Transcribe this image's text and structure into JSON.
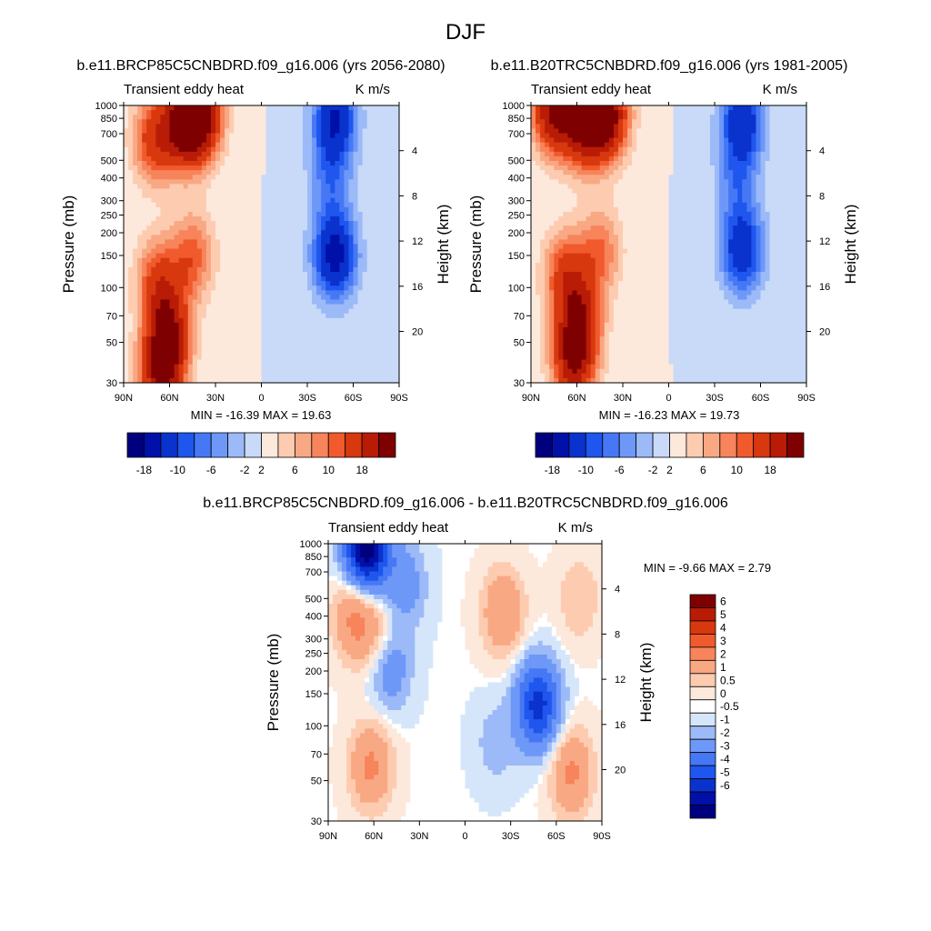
{
  "figure": {
    "title": "DJF"
  },
  "chart_data": [
    {
      "type": "heatmap",
      "title": "b.e11.BRCP85C5CNBDRD.f09_g16.006 (yrs 2056-2080)",
      "left_label": "Transient eddy heat",
      "right_label": "K m/s",
      "ylabel": "Pressure (mb)",
      "y2label": "Height (km)",
      "x_ticks": [
        "90N",
        "60N",
        "30N",
        "0",
        "30S",
        "60S",
        "90S"
      ],
      "y_ticks": [
        "30",
        "50",
        "70",
        "100",
        "150",
        "200",
        "250",
        "300",
        "400",
        "500",
        "700",
        "850",
        "1000"
      ],
      "y2_ticks": [
        "20",
        "16",
        "12",
        "8",
        "4"
      ],
      "xlim": [
        90,
        -90
      ],
      "ylim_mb": [
        1000,
        30
      ],
      "min_max": "MIN = -16.39  MAX =  19.63",
      "colorbar_ticks": [
        "-18",
        "-10",
        "-6",
        "-2",
        "2",
        "6",
        "10",
        "18"
      ],
      "features": [
        {
          "lat": 65,
          "p": 35,
          "v": 19
        },
        {
          "lat": 60,
          "p": 60,
          "v": 14
        },
        {
          "lat": 68,
          "p": 110,
          "v": 10
        },
        {
          "lat": 45,
          "p": 150,
          "v": 9
        },
        {
          "lat": 50,
          "p": 800,
          "v": 17
        },
        {
          "lat": 40,
          "p": 880,
          "v": 19
        },
        {
          "lat": 70,
          "p": 650,
          "v": 12
        },
        {
          "lat": -48,
          "p": 150,
          "v": -16
        },
        {
          "lat": -48,
          "p": 850,
          "v": -14
        },
        {
          "lat": -45,
          "p": 400,
          "v": -6
        }
      ]
    },
    {
      "type": "heatmap",
      "title": "b.e11.B20TRC5CNBDRD.f09_g16.006 (yrs 1981-2005)",
      "left_label": "Transient eddy heat",
      "right_label": "K m/s",
      "ylabel": "Pressure (mb)",
      "y2label": "Height (km)",
      "x_ticks": [
        "90N",
        "60N",
        "30N",
        "0",
        "30S",
        "60S",
        "90S"
      ],
      "y_ticks": [
        "30",
        "50",
        "70",
        "100",
        "150",
        "200",
        "250",
        "300",
        "400",
        "500",
        "700",
        "850",
        "1000"
      ],
      "y2_ticks": [
        "20",
        "16",
        "12",
        "8",
        "4"
      ],
      "xlim": [
        90,
        -90
      ],
      "ylim_mb": [
        1000,
        30
      ],
      "min_max": "MIN = -16.23  MAX =  19.73",
      "colorbar_ticks": [
        "-18",
        "-10",
        "-6",
        "-2",
        "2",
        "6",
        "10",
        "18"
      ],
      "features": [
        {
          "lat": 62,
          "p": 40,
          "v": 17
        },
        {
          "lat": 58,
          "p": 70,
          "v": 13
        },
        {
          "lat": 68,
          "p": 120,
          "v": 10
        },
        {
          "lat": 45,
          "p": 160,
          "v": 8
        },
        {
          "lat": 55,
          "p": 800,
          "v": 18
        },
        {
          "lat": 40,
          "p": 880,
          "v": 19
        },
        {
          "lat": 75,
          "p": 950,
          "v": 19
        },
        {
          "lat": -48,
          "p": 160,
          "v": -13
        },
        {
          "lat": -48,
          "p": 850,
          "v": -13
        },
        {
          "lat": -45,
          "p": 400,
          "v": -6
        }
      ]
    },
    {
      "type": "heatmap",
      "title": "b.e11.BRCP85C5CNBDRD.f09_g16.006 - b.e11.B20TRC5CNBDRD.f09_g16.006",
      "left_label": "Transient eddy heat",
      "right_label": "K m/s",
      "ylabel": "Pressure (mb)",
      "y2label": "Height (km)",
      "x_ticks": [
        "90N",
        "60N",
        "30N",
        "0",
        "30S",
        "60S",
        "90S"
      ],
      "y_ticks": [
        "30",
        "50",
        "70",
        "100",
        "150",
        "200",
        "250",
        "300",
        "400",
        "500",
        "700",
        "850",
        "1000"
      ],
      "y2_ticks": [
        "20",
        "16",
        "12",
        "8",
        "4"
      ],
      "xlim": [
        90,
        -90
      ],
      "ylim_mb": [
        1000,
        30
      ],
      "min_max": "MIN =  -9.66  MAX =   2.79",
      "colorbar_ticks": [
        "6",
        "5",
        "4",
        "3",
        "2",
        "1",
        "0.5",
        "0",
        "-0.5",
        "-1",
        "-2",
        "-3",
        "-4",
        "-5",
        "-6"
      ],
      "features": [
        {
          "lat": 62,
          "p": 60,
          "v": 2.2
        },
        {
          "lat": 55,
          "p": 300,
          "v": 1.5
        },
        {
          "lat": 72,
          "p": 400,
          "v": 2.4
        },
        {
          "lat": 50,
          "p": 220,
          "v": -2.2
        },
        {
          "lat": 65,
          "p": 960,
          "v": -7
        },
        {
          "lat": 40,
          "p": 600,
          "v": -1.6
        },
        {
          "lat": -48,
          "p": 130,
          "v": -4.5
        },
        {
          "lat": -70,
          "p": 55,
          "v": 2.2
        },
        {
          "lat": -25,
          "p": 420,
          "v": 2
        },
        {
          "lat": -75,
          "p": 500,
          "v": 1
        },
        {
          "lat": -20,
          "p": 80,
          "v": -0.8
        }
      ]
    }
  ],
  "colors": {
    "full_scale": [
      "#00007F",
      "#0010A8",
      "#0A32CC",
      "#1E56EE",
      "#4678F5",
      "#6E98F8",
      "#9CBAF8",
      "#C8DAF8",
      "#FDE8DC",
      "#FDCCB0",
      "#F9A884",
      "#F7845A",
      "#F05A2C",
      "#D8380E",
      "#B81C06",
      "#7F0000"
    ],
    "diff_scale": [
      "#00007F",
      "#0010A8",
      "#0A32CC",
      "#1E56EE",
      "#4678F5",
      "#6E98F8",
      "#9CBAF8",
      "#D6E6FA",
      "#FFFFFF",
      "#FDE8DC",
      "#FDCCB0",
      "#F9A884",
      "#F7845A",
      "#F05A2C",
      "#D8380E",
      "#B81C06",
      "#7F0000"
    ]
  }
}
